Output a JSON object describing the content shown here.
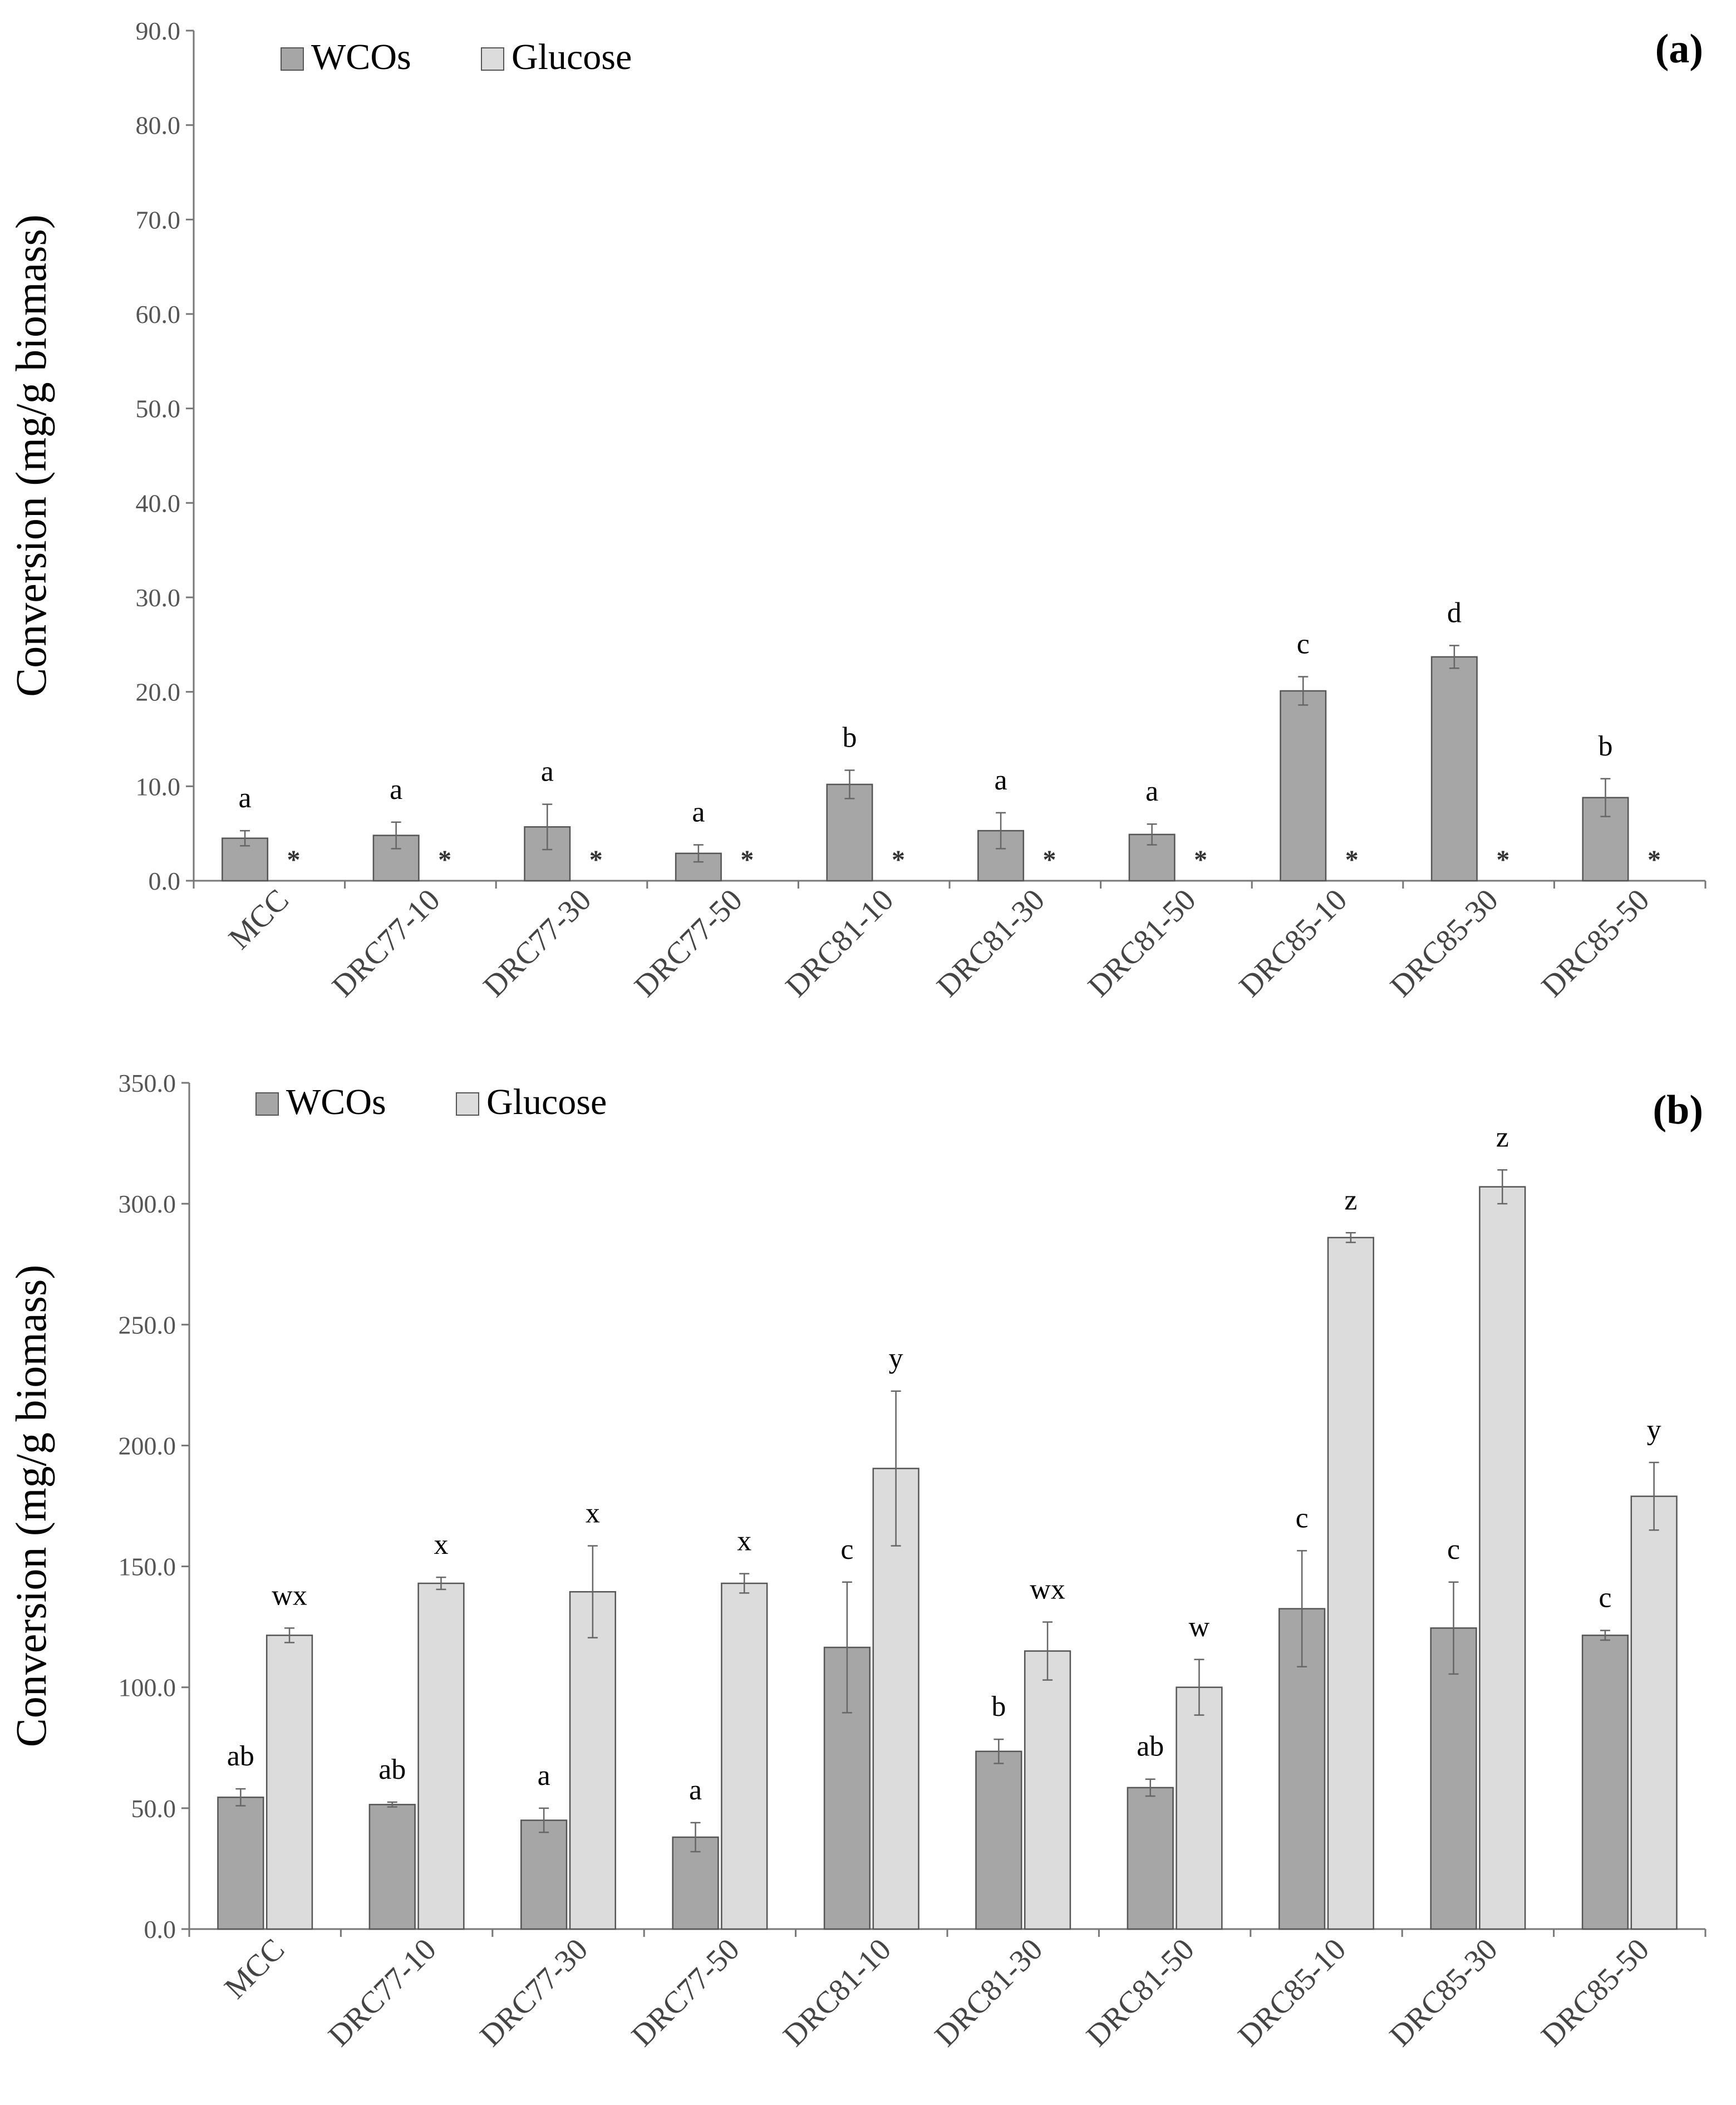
{
  "colors": {
    "wcos": "#a6a6a6",
    "glucose": "#dcdcdc",
    "bar_stroke": "#555555",
    "axis": "#777777"
  },
  "chart_data": [
    {
      "type": "bar",
      "panel": "(a)",
      "ylabel": "Conversion (mg/g biomass)",
      "xlabel": "",
      "ylim": [
        0,
        90
      ],
      "yticks": [
        "0.0",
        "10.0",
        "20.0",
        "30.0",
        "40.0",
        "50.0",
        "60.0",
        "70.0",
        "80.0",
        "90.0"
      ],
      "legend": [
        "WCOs",
        "Glucose"
      ],
      "legend_position": "top-left",
      "categories": [
        "MCC",
        "DRC77-10",
        "DRC77-30",
        "DRC77-50",
        "DRC81-10",
        "DRC81-30",
        "DRC81-50",
        "DRC85-10",
        "DRC85-30",
        "DRC85-50"
      ],
      "series": [
        {
          "name": "WCOs",
          "values": [
            4.5,
            4.8,
            5.7,
            2.9,
            10.2,
            5.3,
            4.9,
            20.1,
            23.7,
            8.8
          ],
          "errors": [
            0.8,
            1.4,
            2.4,
            0.9,
            1.5,
            1.9,
            1.1,
            1.5,
            1.2,
            2.0
          ],
          "labels": [
            "a",
            "a",
            "a",
            "a",
            "b",
            "a",
            "a",
            "c",
            "d",
            "b"
          ]
        },
        {
          "name": "Glucose",
          "values": [
            0,
            0,
            0,
            0,
            0,
            0,
            0,
            0,
            0,
            0
          ],
          "errors": [
            0,
            0,
            0,
            0,
            0,
            0,
            0,
            0,
            0,
            0
          ],
          "labels": [
            "*",
            "*",
            "*",
            "*",
            "*",
            "*",
            "*",
            "*",
            "*",
            "*"
          ]
        }
      ]
    },
    {
      "type": "bar",
      "panel": "(b)",
      "ylabel": "Conversion (mg/g biomass)",
      "xlabel": "",
      "ylim": [
        0,
        350
      ],
      "yticks": [
        "0.0",
        "50.0",
        "100.0",
        "150.0",
        "200.0",
        "250.0",
        "300.0",
        "350.0"
      ],
      "legend": [
        "WCOs",
        "Glucose"
      ],
      "legend_position": "top-left",
      "categories": [
        "MCC",
        "DRC77-10",
        "DRC77-30",
        "DRC77-50",
        "DRC81-10",
        "DRC81-30",
        "DRC81-50",
        "DRC85-10",
        "DRC85-30",
        "DRC85-50"
      ],
      "series": [
        {
          "name": "WCOs",
          "values": [
            54.5,
            51.5,
            45.0,
            38.0,
            116.5,
            73.5,
            58.5,
            132.5,
            124.5,
            121.5
          ],
          "errors": [
            3.5,
            1.0,
            5.0,
            6.0,
            27.0,
            5.0,
            3.5,
            24.0,
            19.0,
            2.0
          ],
          "labels": [
            "ab",
            "ab",
            "a",
            "a",
            "c",
            "b",
            "ab",
            "c",
            "c",
            "c"
          ]
        },
        {
          "name": "Glucose",
          "values": [
            121.5,
            143.0,
            139.5,
            143.0,
            190.5,
            115.0,
            100.0,
            286.0,
            307.0,
            179.0
          ],
          "errors": [
            3.0,
            2.5,
            19.0,
            4.0,
            32.0,
            12.0,
            11.5,
            2.0,
            7.0,
            14.0
          ],
          "labels": [
            "wx",
            "x",
            "x",
            "x",
            "y",
            "wx",
            "w",
            "z",
            "z",
            "y"
          ]
        }
      ]
    }
  ]
}
